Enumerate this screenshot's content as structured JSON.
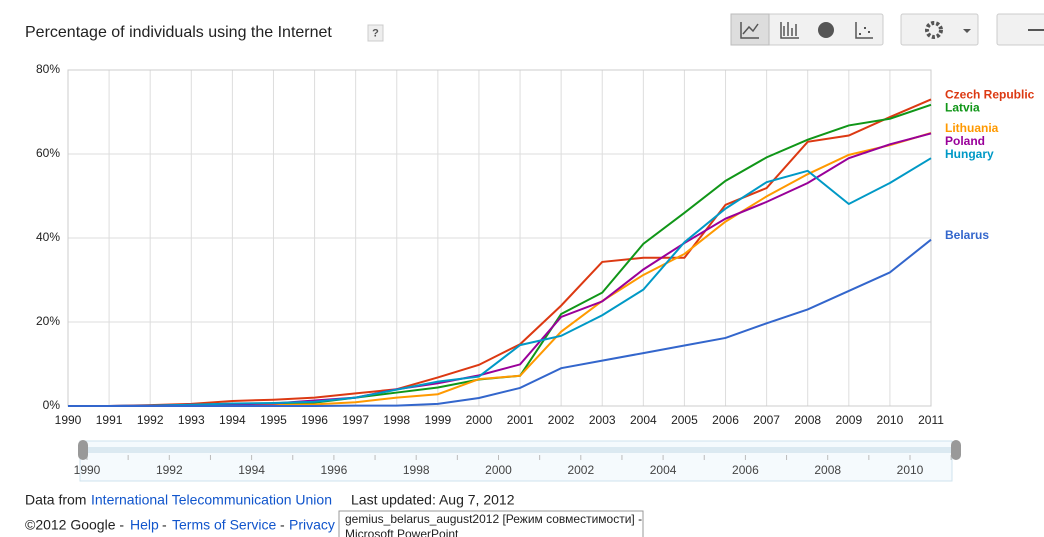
{
  "chart_data": {
    "type": "line",
    "title": "Percentage of individuals using the Internet",
    "help": "?",
    "x": [
      1990,
      1991,
      1992,
      1993,
      1994,
      1995,
      1996,
      1997,
      1998,
      1999,
      2000,
      2001,
      2002,
      2003,
      2004,
      2005,
      2006,
      2007,
      2008,
      2009,
      2010,
      2011
    ],
    "series": [
      {
        "name": "Czech Republic",
        "color": "#dc3912",
        "values": [
          0,
          0,
          0.2,
          0.5,
          1.2,
          1.5,
          2,
          3,
          4,
          6.8,
          9.8,
          14.7,
          23.9,
          34.3,
          35.3,
          35.3,
          47.9,
          51.9,
          62.9,
          64.4,
          68.8,
          73
        ]
      },
      {
        "name": "Latvia",
        "color": "#109618",
        "values": [
          0,
          0,
          0,
          0,
          0,
          0.2,
          0.8,
          2,
          3.2,
          4.4,
          6.3,
          7.2,
          21.9,
          27,
          38.6,
          46,
          53.6,
          59.2,
          63.4,
          66.8,
          68.4,
          71.7
        ]
      },
      {
        "name": "Lithuania",
        "color": "#ff9900",
        "values": [
          0,
          0,
          0,
          0,
          0,
          0.2,
          0.4,
          0.9,
          2,
          2.8,
          6.4,
          7.2,
          17.7,
          25,
          31.2,
          36.2,
          43.9,
          49.9,
          55.2,
          59.8,
          62.1,
          65
        ]
      },
      {
        "name": "Poland",
        "color": "#990099",
        "values": [
          0,
          0,
          0.1,
          0.3,
          0.4,
          0.6,
          1.3,
          2,
          4,
          5.4,
          7.3,
          9.9,
          21.2,
          24.9,
          32.5,
          38.8,
          44.6,
          48.6,
          53.1,
          59,
          62.3,
          64.9
        ]
      },
      {
        "name": "Hungary",
        "color": "#0099c6",
        "values": [
          0,
          0,
          0.1,
          0.3,
          0.6,
          0.7,
          1,
          2,
          3.9,
          5.8,
          7,
          14.5,
          16.7,
          21.6,
          27.7,
          39,
          47,
          53.3,
          56,
          48.1,
          53.1,
          59
        ]
      },
      {
        "name": "Belarus",
        "color": "#3366cc",
        "values": [
          0,
          0,
          0,
          0,
          0,
          0,
          0,
          0.1,
          0.1,
          0.5,
          1.9,
          4.3,
          9,
          10.8,
          12.6,
          14.4,
          16.2,
          19.7,
          23,
          27.4,
          31.8,
          39.6
        ]
      }
    ],
    "xlim": [
      1990,
      2011
    ],
    "xticks": [
      1990,
      1991,
      1992,
      1993,
      1994,
      1995,
      1996,
      1997,
      1998,
      1999,
      2000,
      2001,
      2002,
      2003,
      2004,
      2005,
      2006,
      2007,
      2008,
      2009,
      2010,
      2011
    ],
    "ylim": [
      0,
      80
    ],
    "yticks": [
      {
        "value": 0,
        "label": "0%"
      },
      {
        "value": 20,
        "label": "20%"
      },
      {
        "value": 40,
        "label": "40%"
      },
      {
        "value": 60,
        "label": "60%"
      },
      {
        "value": 80,
        "label": "80%"
      }
    ],
    "grid": true
  },
  "slider": {
    "labels": [
      1990,
      1992,
      1994,
      1996,
      1998,
      2000,
      2002,
      2004,
      2006,
      2008,
      2010
    ]
  },
  "footer": {
    "data_from": "Data from",
    "source": "International Telecommunication Union",
    "updated": "Last updated: Aug 7, 2012",
    "copyright": "©2012 Google -",
    "help": "Help",
    "sep1": "-",
    "terms": "Terms of Service",
    "sep2": "-",
    "privacy": "Privacy"
  },
  "tooltip": {
    "line1": "gemius_belarus_august2012 [Режим совместимости] -",
    "line2": "Microsoft PowerPoint"
  }
}
